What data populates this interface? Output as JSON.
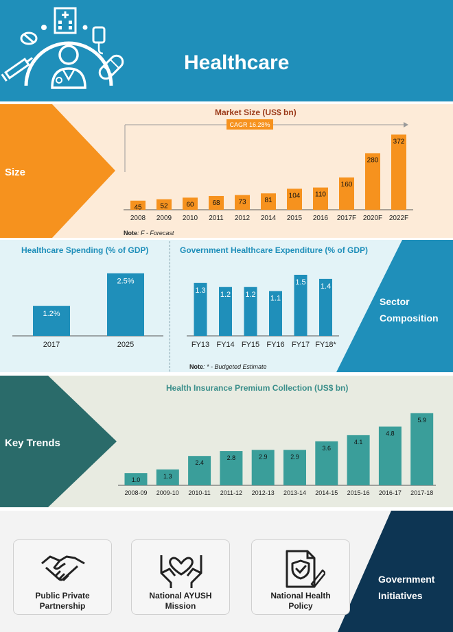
{
  "header": {
    "title": "Healthcare"
  },
  "size_section": {
    "label": "Size",
    "note_bold": "Note",
    "note_text": ": F - Forecast",
    "cagr_label": "CAGR 16.28%"
  },
  "sector_section": {
    "label_line1": "Sector",
    "label_line2": "Composition",
    "note_bold": "Note",
    "note_text": ": * - Budgeted Estimate"
  },
  "trends_section": {
    "label": "Key Trends"
  },
  "gov_section": {
    "label_line1": "Government",
    "label_line2": "Initiatives",
    "cards": [
      {
        "line1": "Public Private",
        "line2": "Partnership",
        "icon": "handshake-icon"
      },
      {
        "line1": "National AYUSH",
        "line2": "Mission",
        "icon": "hands-heart-icon"
      },
      {
        "line1": "National Health",
        "line2": "Policy",
        "icon": "policy-document-icon"
      }
    ]
  },
  "colors": {
    "header_bg": "#1f8fba",
    "orange": "#f6921e",
    "teal_dark": "#2a6b6a",
    "teal_bar": "#3a9e9a",
    "blue_bar": "#1f8fba",
    "navy": "#0d3553",
    "market_title": "#9b3a1a"
  },
  "chart_data": [
    {
      "type": "bar",
      "title": "Market Size (US$ bn)",
      "categories": [
        "2008",
        "2009",
        "2010",
        "2011",
        "2012",
        "2014",
        "2015",
        "2016",
        "2017F",
        "2020F",
        "2022F"
      ],
      "values": [
        45,
        52,
        60,
        68,
        73,
        81,
        104,
        110,
        160,
        280,
        372
      ],
      "data_labels": [
        "45",
        "52",
        "60",
        "68",
        "73",
        "81",
        "104",
        "110",
        "160",
        "280",
        "372"
      ],
      "ylim": [
        0,
        380
      ],
      "annotation": "CAGR 16.28%",
      "grid": false
    },
    {
      "type": "bar",
      "title": "Healthcare Spending (% of GDP)",
      "categories": [
        "2017",
        "2025"
      ],
      "values": [
        1.2,
        2.5
      ],
      "data_labels": [
        "1.2%",
        "2.5%"
      ],
      "ylim": [
        0,
        2.6
      ],
      "grid": false
    },
    {
      "type": "bar",
      "title": "Government Healthcare Expenditure (% of GDP)",
      "categories": [
        "FY13",
        "FY14",
        "FY15",
        "FY16",
        "FY17",
        "FY18*"
      ],
      "values": [
        1.3,
        1.2,
        1.2,
        1.1,
        1.5,
        1.4
      ],
      "data_labels": [
        "1.3",
        "1.2",
        "1.2",
        "1.1",
        "1.5",
        "1.4"
      ],
      "ylim": [
        0,
        1.6
      ],
      "grid": false
    },
    {
      "type": "bar",
      "title": "Health Insurance Premium Collection (US$ bn)",
      "categories": [
        "2008-09",
        "2009-10",
        "2010-11",
        "2011-12",
        "2012-13",
        "2013-14",
        "2014-15",
        "2015-16",
        "2016-17",
        "2017-18"
      ],
      "values": [
        1.0,
        1.3,
        2.4,
        2.8,
        2.9,
        2.9,
        3.6,
        4.1,
        4.8,
        5.9
      ],
      "data_labels": [
        "1.0",
        "1.3",
        "2.4",
        "2.8",
        "2.9",
        "2.9",
        "3.6",
        "4.1",
        "4.8",
        "5.9"
      ],
      "ylim": [
        0,
        6
      ],
      "grid": false
    }
  ]
}
